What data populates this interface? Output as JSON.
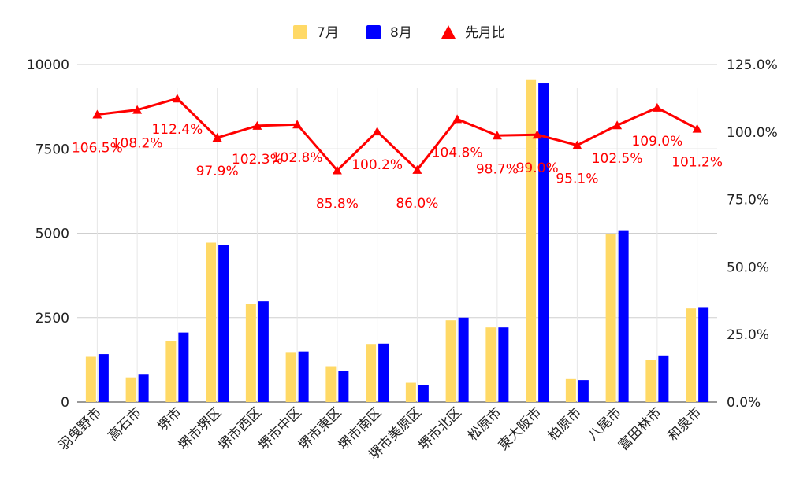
{
  "chart_data": {
    "type": "bar",
    "categories": [
      "羽曳野市",
      "高石市",
      "堺市",
      "堺市堺区",
      "堺市西区",
      "堺市中区",
      "堺市東区",
      "堺市南区",
      "堺市美原区",
      "堺市北区",
      "松原市",
      "東大阪市",
      "柏原市",
      "八尾市",
      "富田林市",
      "和泉市"
    ],
    "series": [
      {
        "name": "7月",
        "type": "bar",
        "axis": "left",
        "color": "#ffd966",
        "values": [
          1340,
          730,
          1810,
          4720,
          2900,
          1460,
          1060,
          1720,
          570,
          2420,
          2210,
          9540,
          680,
          4980,
          1250,
          2770
        ]
      },
      {
        "name": "8月",
        "type": "bar",
        "axis": "left",
        "color": "#0000ff",
        "values": [
          1420,
          810,
          2060,
          4650,
          2980,
          1500,
          910,
          1730,
          500,
          2500,
          2210,
          9440,
          650,
          5090,
          1380,
          2810
        ]
      },
      {
        "name": "先月比",
        "type": "line",
        "axis": "right",
        "color": "#ff0000",
        "marker": "triangle",
        "values": [
          106.5,
          108.2,
          112.4,
          97.9,
          102.3,
          102.8,
          85.8,
          100.2,
          86.0,
          104.8,
          98.7,
          99.0,
          95.1,
          102.5,
          109.0,
          101.2
        ],
        "labels": [
          "106.5%",
          "108.2%",
          "112.4%",
          "97.9%",
          "102.3%",
          "102.8%",
          "85.8%",
          "100.2%",
          "86.0%",
          "104.8%",
          "98.7%",
          "99.0%",
          "95.1%",
          "102.5%",
          "109.0%",
          "101.2%"
        ]
      }
    ],
    "left_axis": {
      "min": 0,
      "max": 10000,
      "ticks": [
        "0",
        "2500",
        "5000",
        "7500",
        "10000"
      ],
      "tick_values": [
        0,
        2500,
        5000,
        7500,
        10000
      ]
    },
    "right_axis": {
      "min": 0,
      "max": 125,
      "ticks": [
        "0.0%",
        "25.0%",
        "50.0%",
        "75.0%",
        "100.0%",
        "125.0%"
      ],
      "tick_values": [
        0,
        25,
        50,
        75,
        100,
        125
      ]
    },
    "legend": {
      "position": "top",
      "items": [
        "7月",
        "8月",
        "先月比"
      ]
    },
    "grid": true
  }
}
